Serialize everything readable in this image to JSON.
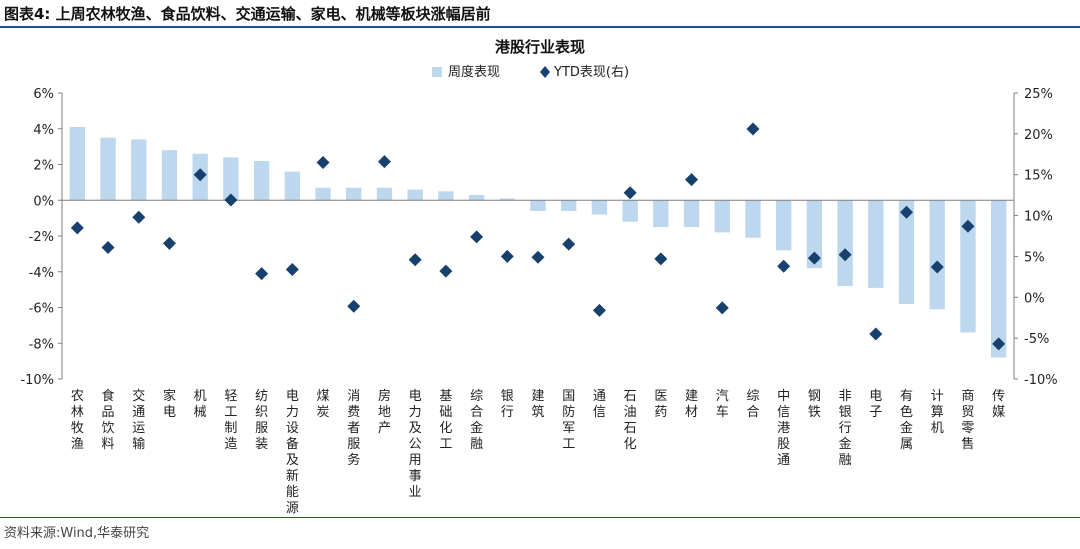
{
  "figure": {
    "title": "图表4:  上周农林牧渔、食品饮料、交通运输、家电、机械等板块涨幅居前",
    "source": "资料来源:Wind,华泰研究"
  },
  "colors": {
    "bar": "#bdd7ee",
    "marker": "#17406d",
    "rule": "#1f4e8c",
    "axis": "#7f7f7f"
  },
  "chart_data": {
    "type": "bar",
    "title": "港股行业表现",
    "legend": {
      "position": "top"
    },
    "grid": false,
    "categories": [
      "农林牧渔",
      "食品饮料",
      "交通运输",
      "家电",
      "机械",
      "轻工制造",
      "纺织服装",
      "电力设备及新能源",
      "煤炭",
      "消费者服务",
      "房地产",
      "电力及公用事业",
      "基础化工",
      "综合金融",
      "银行",
      "建筑",
      "国防军工",
      "通信",
      "石油石化",
      "医药",
      "建材",
      "汽车",
      "综合",
      "中信港股通",
      "钢铁",
      "非银行金融",
      "电子",
      "有色金属",
      "计算机",
      "商贸零售",
      "传媒"
    ],
    "series": [
      {
        "name": "周度表现",
        "type": "bar",
        "axis": "left",
        "values": [
          4.1,
          3.5,
          3.4,
          2.8,
          2.6,
          2.4,
          2.2,
          1.6,
          0.7,
          0.7,
          0.7,
          0.6,
          0.5,
          0.3,
          0.1,
          -0.6,
          -0.6,
          -0.8,
          -1.2,
          -1.5,
          -1.5,
          -1.8,
          -2.1,
          -2.8,
          -3.8,
          -4.8,
          -4.9,
          -5.8,
          -6.1,
          -7.4,
          -8.8
        ]
      },
      {
        "name": "YTD表现(右)",
        "type": "scatter",
        "axis": "right",
        "values": [
          8.5,
          6.1,
          9.8,
          6.6,
          15.0,
          11.9,
          2.9,
          3.4,
          16.5,
          -1.1,
          16.6,
          4.6,
          3.2,
          7.4,
          5.0,
          4.9,
          6.5,
          -1.6,
          12.8,
          4.7,
          14.4,
          -1.3,
          20.6,
          3.8,
          4.8,
          5.2,
          -4.5,
          10.4,
          3.7,
          8.7,
          -5.7
        ]
      }
    ],
    "y_left": {
      "ylim": [
        -10,
        6
      ],
      "ticks": [
        "6%",
        "4%",
        "2%",
        "0%",
        "-2%",
        "-4%",
        "-6%",
        "-8%",
        "-10%"
      ]
    },
    "y_right": {
      "ylim": [
        -10,
        25
      ],
      "ticks": [
        "25%",
        "20%",
        "15%",
        "10%",
        "5%",
        "0%",
        "-5%",
        "-10%"
      ]
    }
  }
}
